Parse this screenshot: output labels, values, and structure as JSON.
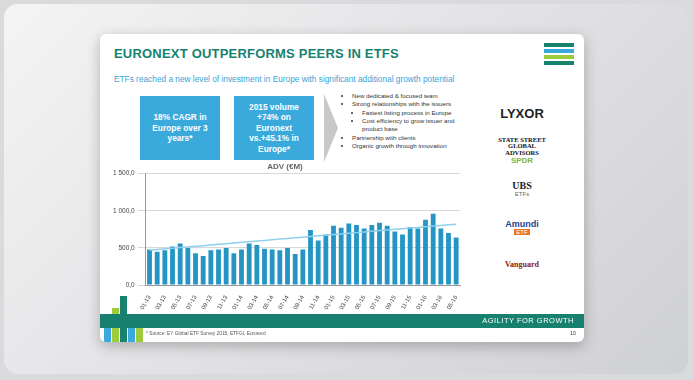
{
  "slide": {
    "title": "EURONEXT OUTPERFORMS PEERS IN ETFS",
    "subtitle": "ETFs reached a new level of investment in Europe with significant additional growth potential",
    "highlights": [
      "18% CAGR in Europe over 3 years*",
      "2015 volume +74% on Euronext vs.+45.1% in Europe*"
    ],
    "bullets": [
      {
        "text": "New dedicated & focused team",
        "sub": []
      },
      {
        "text": "Strong relationships with the issuers",
        "sub": [
          "Fastest listing process in Europe",
          "Cost efficiency to grow issuer and product base"
        ]
      },
      {
        "text": "Partnership with clients",
        "sub": []
      },
      {
        "text": "Organic growth through innovation",
        "sub": []
      }
    ],
    "logos": [
      {
        "main": "LYXOR",
        "sub": ""
      },
      {
        "main": "STATE STREET GLOBAL ADVISORS",
        "sub": "SPDR"
      },
      {
        "main": "UBS",
        "sub": "ETFs"
      },
      {
        "main": "Amundi",
        "sub": "ETF"
      },
      {
        "main": "Vanguard",
        "sub": ""
      }
    ],
    "footnote": "* Source: EY Global ETF Survey 2015, ETFGI, Euronext",
    "footer": "AGILITY FOR GROWTH",
    "page": "10"
  },
  "chart_data": {
    "type": "bar",
    "title": "ADV (€M)",
    "categories": [
      "01-13",
      null,
      "03-13",
      null,
      "05-13",
      null,
      "07-13",
      null,
      "09-13",
      null,
      "11-13",
      null,
      "01-14",
      null,
      "03-14",
      null,
      "05-14",
      null,
      "07-14",
      null,
      "09-14",
      null,
      "11-14",
      null,
      "01-15",
      null,
      "03-15",
      null,
      "05-15",
      null,
      "07-15",
      null,
      "09-15",
      null,
      "11-15",
      null,
      "01-16",
      null,
      "03-16",
      null,
      "05-16"
    ],
    "series": [
      {
        "type": "bar",
        "color": "#2596c4",
        "values": [
          480,
          450,
          470,
          520,
          560,
          500,
          430,
          390,
          470,
          480,
          500,
          430,
          480,
          560,
          540,
          490,
          480,
          470,
          500,
          420,
          480,
          740,
          600,
          680,
          800,
          770,
          830,
          810,
          760,
          810,
          840,
          800,
          720,
          680,
          780,
          760,
          880,
          960,
          760,
          700,
          640
        ]
      },
      {
        "type": "line",
        "color": "#8fd0ee",
        "marker": "none",
        "values": [
          470,
          479,
          488,
          496,
          505,
          514,
          523,
          531,
          540,
          549,
          558,
          566,
          575,
          584,
          593,
          601,
          610,
          619,
          628,
          636,
          645,
          654,
          663,
          671,
          680,
          689,
          698,
          706,
          715,
          724,
          733,
          741,
          750,
          759,
          768,
          776,
          785,
          794,
          803,
          811,
          820
        ]
      }
    ],
    "ylim": [
      0,
      1500
    ],
    "yticks": [
      {
        "value": 0,
        "label": "0,0"
      },
      {
        "value": 500,
        "label": "500,0"
      },
      {
        "value": 1000,
        "label": "1 000,0"
      },
      {
        "value": 1500,
        "label": "1 500,0"
      }
    ],
    "grid": true
  }
}
